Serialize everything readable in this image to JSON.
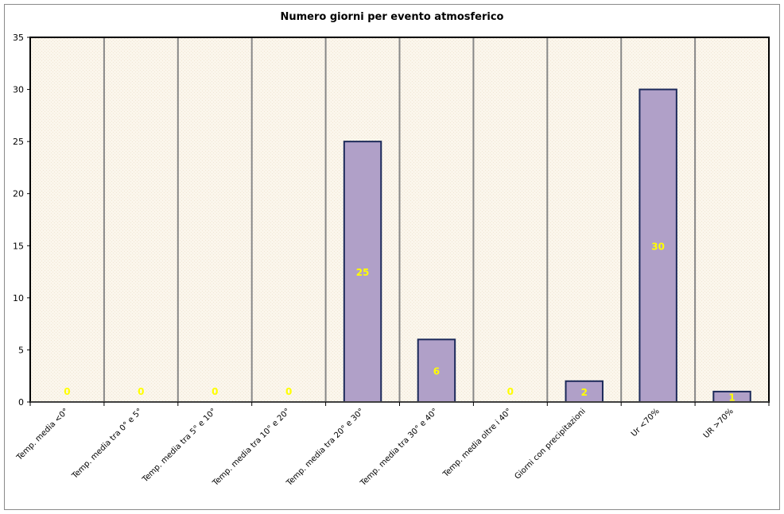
{
  "chart_data": {
    "type": "bar",
    "title": "Numero giorni per evento atmosferico",
    "xlabel": "",
    "ylabel": "",
    "ylim": [
      0,
      35
    ],
    "yticks": [
      "0",
      "5",
      "10",
      "15",
      "20",
      "25",
      "30",
      "35"
    ],
    "categories": [
      "Temp. media <0°",
      "Temp. media tra 0° e 5°",
      "Temp. media tra 5° e 10°",
      "Temp. media tra 10° e 20°",
      "Temp. media tra 20° e 30°",
      "Temp. media tra 30° e 40°",
      "Temp. media oltre i 40°",
      "Giorni con precipitazioni",
      "Ur <70%",
      "UR >70%"
    ],
    "values": [
      0,
      0,
      0,
      0,
      25,
      6,
      0,
      2,
      30,
      1
    ],
    "data_labels": [
      "0",
      "0",
      "0",
      "0",
      "25",
      "6",
      "0",
      "2",
      "30",
      "1"
    ],
    "grid": "vertical category gridlines",
    "legend": "none",
    "colors": {
      "bar_fill": "#b0a0c8",
      "bar_stroke": "#1c2a5a",
      "plot_bg": "#fbf5ea",
      "data_label": "#ffff00",
      "gridline": "#888888"
    }
  }
}
